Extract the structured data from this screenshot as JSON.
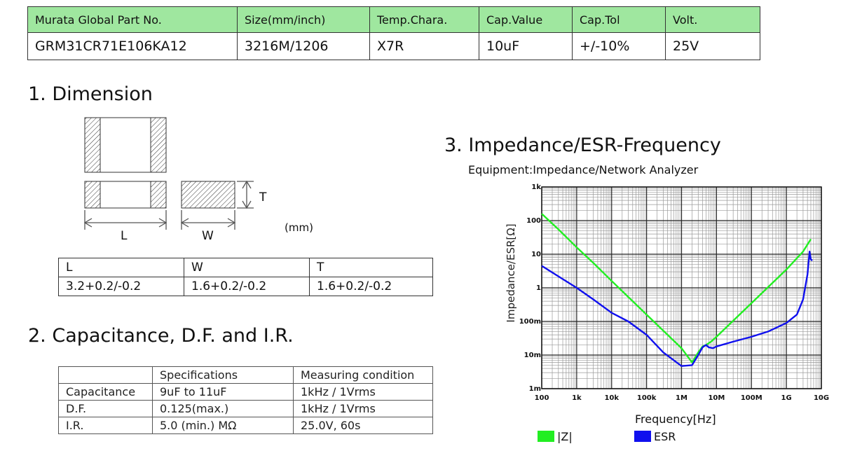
{
  "part_table": {
    "headers": [
      "Murata Global Part No.",
      "Size(mm/inch)",
      "Temp.Chara.",
      "Cap.Value",
      "Cap.Tol",
      "Volt."
    ],
    "values": [
      "GRM31CR71E106KA12",
      "3216M/1206",
      "X7R",
      "10uF",
      "+/-10%",
      "25V"
    ]
  },
  "section1": {
    "title": "1. Dimension",
    "unit": "(mm)",
    "labels": {
      "L": "L",
      "W": "W",
      "T": "T"
    },
    "table": {
      "headers": [
        "L",
        "W",
        "T"
      ],
      "values": [
        "3.2+0.2/-0.2",
        "1.6+0.2/-0.2",
        "1.6+0.2/-0.2"
      ]
    }
  },
  "section2": {
    "title": "2. Capacitance, D.F. and I.R.",
    "table": {
      "headers": [
        "",
        "Specifications",
        "Measuring condition"
      ],
      "rows": [
        [
          "Capacitance",
          "9uF to 11uF",
          "1kHz / 1Vrms"
        ],
        [
          "D.F.",
          "0.125(max.)",
          "1kHz / 1Vrms"
        ],
        [
          "I.R.",
          "5.0 (min.) MΩ",
          "25.0V, 60s"
        ]
      ]
    }
  },
  "section3": {
    "title": "3. Impedance/ESR-Frequency",
    "equipment": "Equipment:Impedance/Network Analyzer"
  },
  "chart_data": {
    "type": "line",
    "xlabel": "Frequency[Hz]",
    "ylabel": "Impedance/ESR[Ω]",
    "x_scale": "log",
    "y_scale": "log",
    "xlim": [
      100,
      10000000000
    ],
    "ylim": [
      0.001,
      1000
    ],
    "x_ticks": [
      "100",
      "1k",
      "10k",
      "100k",
      "1M",
      "10M",
      "100M",
      "1G",
      "10G"
    ],
    "y_ticks": [
      "1m",
      "10m",
      "100m",
      "1",
      "10",
      "100",
      "1k"
    ],
    "grid": true,
    "legend_position": "bottom",
    "series": [
      {
        "name": "|Z|",
        "color": "#22ee22",
        "x": [
          100,
          300,
          1000,
          3000,
          10000,
          100000,
          1000000,
          2000000,
          3000000,
          4000000,
          5000000,
          7000000,
          10000000,
          100000000,
          1000000000,
          3000000000,
          5000000000
        ],
        "y": [
          160,
          55,
          16,
          5.5,
          1.6,
          0.16,
          0.016,
          0.006,
          0.012,
          0.018,
          0.02,
          0.025,
          0.035,
          0.35,
          3.5,
          12,
          28
        ]
      },
      {
        "name": "ESR",
        "color": "#1010ee",
        "x": [
          100,
          300,
          1000,
          3000,
          10000,
          30000,
          100000,
          300000,
          1000000,
          2000000,
          3000000,
          4000000,
          5000000,
          6000000,
          8000000,
          10000000,
          30000000,
          100000000,
          300000000,
          1000000000,
          2000000000,
          3000000000,
          4000000000,
          4600000000,
          5000000000,
          5500000000
        ],
        "y": [
          4.5,
          2.2,
          1.0,
          0.45,
          0.18,
          0.1,
          0.04,
          0.012,
          0.0047,
          0.005,
          0.01,
          0.017,
          0.02,
          0.017,
          0.016,
          0.018,
          0.025,
          0.035,
          0.05,
          0.09,
          0.16,
          0.45,
          2.5,
          12,
          7,
          6.5
        ]
      }
    ]
  }
}
